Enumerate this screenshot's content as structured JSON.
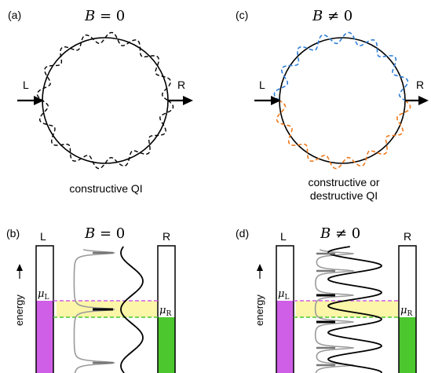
{
  "panels": {
    "a": {
      "tag": "(a)",
      "eq_lhs": "B",
      "eq_rhs": " = 0",
      "left": "L",
      "right": "R",
      "caption": "constructive QI"
    },
    "c": {
      "tag": "(c)",
      "eq_lhs": "B",
      "eq_rhs": " ≠ 0",
      "left": "L",
      "right": "R",
      "caption_line1": "constructive or",
      "caption_line2": "destructive QI"
    },
    "b": {
      "tag": "(b)",
      "eq_lhs": "B",
      "eq_rhs": " = 0",
      "left_lead": "L",
      "right_lead": "R",
      "axis_label": "energy",
      "mu_left": "μ",
      "mu_left_sub": "L",
      "mu_right": "μ",
      "mu_right_sub": "R"
    },
    "d": {
      "tag": "(d)",
      "eq_lhs": "B",
      "eq_rhs": " ≠ 0",
      "left_lead": "L",
      "right_lead": "R",
      "axis_label": "energy",
      "mu_left": "μ",
      "mu_left_sub": "L",
      "mu_right": "μ",
      "mu_right_sub": "R"
    }
  },
  "colors": {
    "lead_fill_left": "#cf5fe6",
    "lead_fill_right": "#4cc72e",
    "bias_window": "#fbf6a8",
    "mu_left_line": "#cf5fe6",
    "mu_right_line": "#4cc72e",
    "path_blue": "#2f7fd6",
    "path_orange": "#ef7a1e",
    "path_brown": "#7a3a12",
    "path_dark": "#1f2f4a",
    "level_gray": "#9a9a9a"
  }
}
